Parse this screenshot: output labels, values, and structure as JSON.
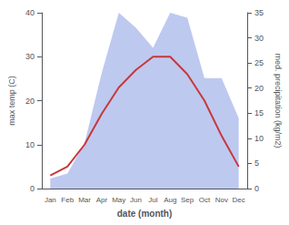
{
  "chart_data": {
    "type": "line",
    "xlabel": "date (month)",
    "ylabel": "max temp (C)",
    "y2label": "med. precipitation (kg/m2)",
    "categories": [
      "Jan",
      "Feb",
      "Mar",
      "Apr",
      "May",
      "Jun",
      "Jul",
      "Aug",
      "Sep",
      "Oct",
      "Nov",
      "Dec"
    ],
    "series": [
      {
        "type": "area",
        "color": "#bec9f0",
        "axis": "y2",
        "values": [
          2,
          3,
          9,
          23,
          35,
          32,
          28,
          35,
          34,
          22,
          22,
          14
        ]
      },
      {
        "type": "line",
        "color": "#c8373a",
        "values": [
          3,
          5,
          10,
          17,
          23,
          27,
          30,
          30,
          26,
          20,
          12,
          5
        ]
      }
    ],
    "ylim": [
      0,
      40
    ],
    "yticks": [
      0,
      10,
      20,
      30,
      40
    ],
    "y2lim": [
      0,
      35
    ],
    "y2ticks": [
      0,
      5,
      10,
      15,
      20,
      25,
      30,
      35
    ],
    "grid": false
  }
}
